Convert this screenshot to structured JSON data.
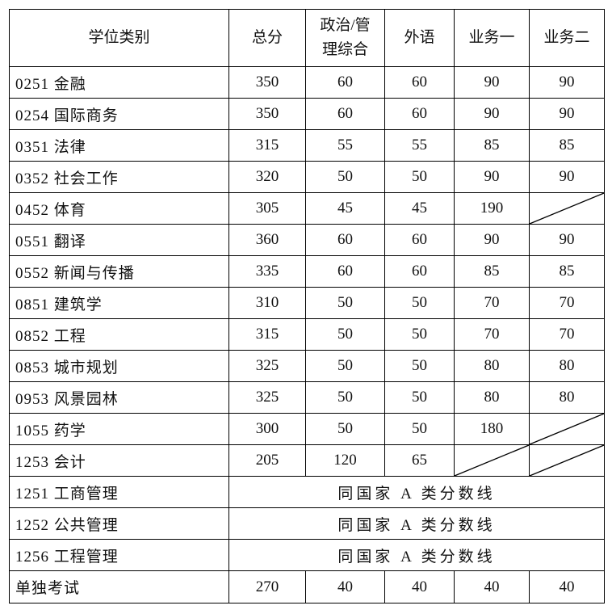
{
  "headers": [
    "学位类别",
    "总分",
    "政治/管理综合",
    "外语",
    "业务一",
    "业务二"
  ],
  "header_lines": {
    "politics_line1": "政治/管",
    "politics_line2": "理综合"
  },
  "rows": [
    {
      "name": "0251 金融",
      "total": "350",
      "politics": "60",
      "language": "60",
      "subject1": "90",
      "subject2": "90"
    },
    {
      "name": "0254 国际商务",
      "total": "350",
      "politics": "60",
      "language": "60",
      "subject1": "90",
      "subject2": "90"
    },
    {
      "name": "0351 法律",
      "total": "315",
      "politics": "55",
      "language": "55",
      "subject1": "85",
      "subject2": "85"
    },
    {
      "name": "0352 社会工作",
      "total": "320",
      "politics": "50",
      "language": "50",
      "subject1": "90",
      "subject2": "90"
    },
    {
      "name": "0452 体育",
      "total": "305",
      "politics": "45",
      "language": "45",
      "subject1": "190",
      "subject2": null
    },
    {
      "name": "0551 翻译",
      "total": "360",
      "politics": "60",
      "language": "60",
      "subject1": "90",
      "subject2": "90"
    },
    {
      "name": "0552 新闻与传播",
      "total": "335",
      "politics": "60",
      "language": "60",
      "subject1": "85",
      "subject2": "85"
    },
    {
      "name": "0851 建筑学",
      "total": "310",
      "politics": "50",
      "language": "50",
      "subject1": "70",
      "subject2": "70"
    },
    {
      "name": "0852 工程",
      "total": "315",
      "politics": "50",
      "language": "50",
      "subject1": "70",
      "subject2": "70"
    },
    {
      "name": "0853 城市规划",
      "total": "325",
      "politics": "50",
      "language": "50",
      "subject1": "80",
      "subject2": "80"
    },
    {
      "name": "0953 风景园林",
      "total": "325",
      "politics": "50",
      "language": "50",
      "subject1": "80",
      "subject2": "80"
    },
    {
      "name": "1055 药学",
      "total": "300",
      "politics": "50",
      "language": "50",
      "subject1": "180",
      "subject2": null
    },
    {
      "name": "1253 会计",
      "total": "205",
      "politics": "120",
      "language": "65",
      "subject1": null,
      "subject2": null
    },
    {
      "name": "1251 工商管理",
      "merged": "同国家 A 类分数线"
    },
    {
      "name": "1252 公共管理",
      "merged": "同国家 A 类分数线"
    },
    {
      "name": "1256 工程管理",
      "merged": "同国家 A 类分数线"
    },
    {
      "name": "单独考试",
      "total": "270",
      "politics": "40",
      "language": "40",
      "subject1": "40",
      "subject2": "40"
    }
  ]
}
